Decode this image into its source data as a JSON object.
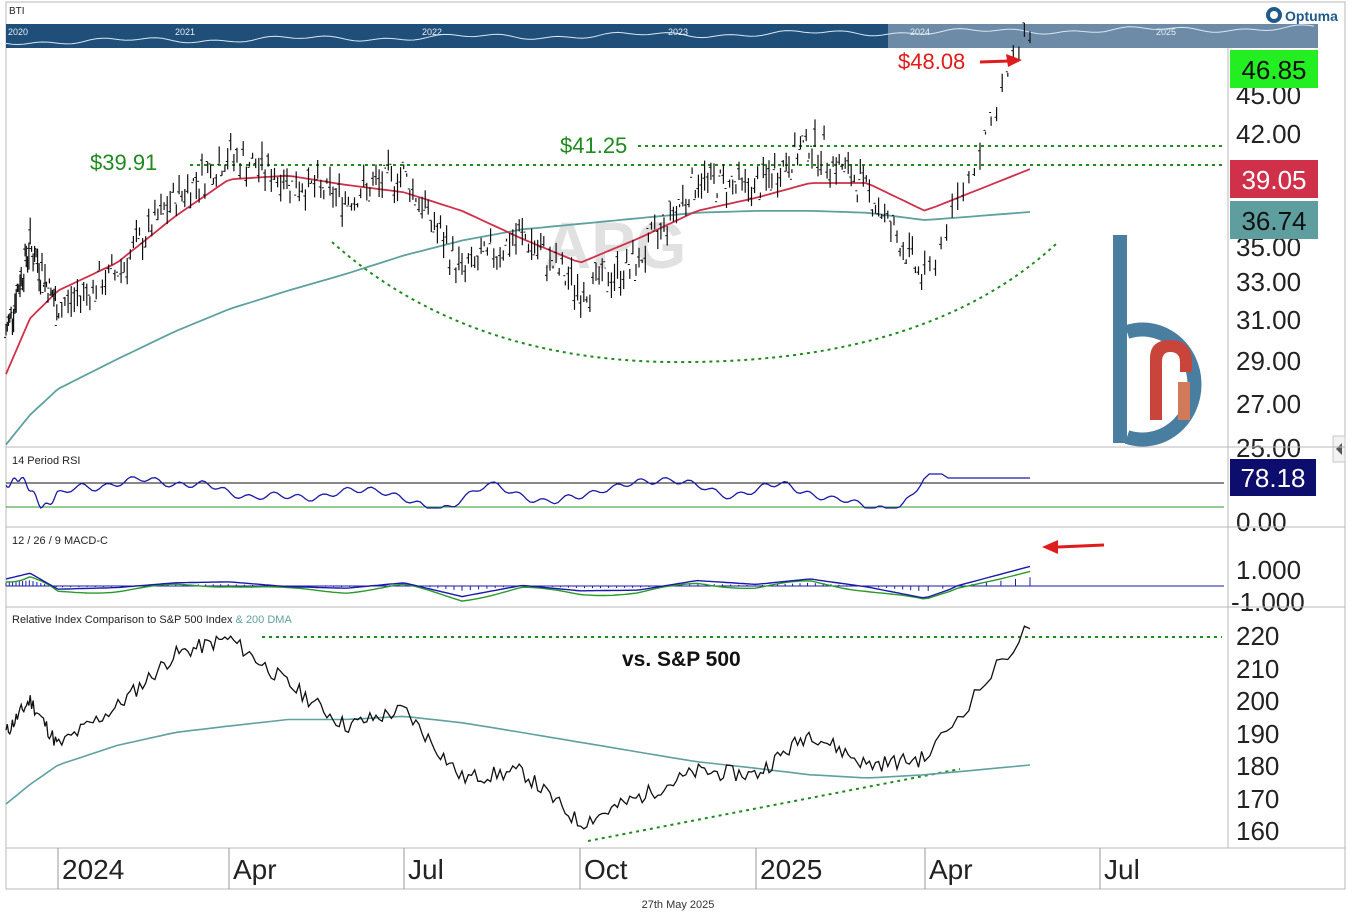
{
  "ticker": "BTI",
  "brand": "Optuma",
  "footer_date": "27th May 2025",
  "colors": {
    "price": "#111111",
    "ma_fast": "#d0304a",
    "ma_slow": "#5fa0a0",
    "dotted": "#1f8a1f",
    "annotation_red": "#e01b1b",
    "last_price_bg": "#22ee22",
    "ma_fast_bg": "#d0304a",
    "ma_slow_bg": "#5f9e9e",
    "rsi_bg": "#0d0d6e",
    "rsi_line": "#1a1aa8",
    "macd_line": "#1a1aa8",
    "signal_line": "#2a9a2a",
    "rel_line": "#111111",
    "rel_ma": "#5fa0a0",
    "logo": "#4a7ea0",
    "logo_accent": "#c9443a",
    "navigator_bg": "#1f4e79"
  },
  "navigator": {
    "years": [
      "2020",
      "2021",
      "2022",
      "2023",
      "2024",
      "2025"
    ]
  },
  "main": {
    "watermark": "APG",
    "price_axis": [
      "45.00",
      "42.00",
      "35.00",
      "33.00",
      "31.00",
      "29.00",
      "27.00",
      "25.00"
    ],
    "axis_boxes": {
      "last_price": "46.85",
      "ma_fast": "39.05",
      "ma_slow": "36.74"
    },
    "annotations": {
      "high_label": "$48.08",
      "resistance_1": "$39.91",
      "resistance_2": "$41.25"
    }
  },
  "rsi": {
    "title": "14 Period RSI",
    "value": "78.18",
    "axis_label": "0.00"
  },
  "macd": {
    "title": "12 / 26 / 9 MACD-C",
    "axis_labels": [
      "1.000",
      "-1.000"
    ]
  },
  "relative": {
    "title": "Relative Index Comparison to S&P 500 Index",
    "ma_label": "& 200 DMA",
    "annotation": "vs. S&P 500",
    "axis_labels": [
      "220",
      "210",
      "200",
      "190",
      "180",
      "170",
      "160"
    ]
  },
  "x_axis": [
    "2024",
    "Apr",
    "Jul",
    "Oct",
    "2025",
    "Apr",
    "Jul"
  ],
  "chart_data": {
    "type": "line",
    "title": "BTI",
    "x": [
      "2023-11",
      "2023-12",
      "2024-01",
      "2024-02",
      "2024-03",
      "2024-04",
      "2024-05",
      "2024-06",
      "2024-07",
      "2024-08",
      "2024-09",
      "2024-10",
      "2024-11",
      "2024-12",
      "2025-01",
      "2025-02",
      "2025-03",
      "2025-04",
      "2025-05"
    ],
    "series": [
      {
        "values": [
          30.2,
          35.0,
          31.5,
          33.5,
          37.5,
          39.8,
          38.5,
          37.5,
          38.8,
          33.5,
          35.5,
          32.5,
          34.0,
          38.5,
          38.0,
          40.5,
          38.0,
          33.0,
          46.85
        ]
      },
      {
        "values": [
          28.0,
          31.0,
          32.5,
          34.0,
          36.5,
          38.5,
          38.7,
          38.2,
          37.8,
          36.8,
          35.3,
          34.0,
          35.3,
          36.8,
          37.5,
          38.3,
          38.3,
          36.8,
          39.05
        ]
      },
      {
        "values": [
          24.2,
          25.8,
          27.2,
          28.8,
          30.3,
          31.5,
          32.5,
          33.4,
          34.4,
          35.2,
          35.8,
          36.1,
          36.4,
          36.7,
          36.8,
          36.8,
          36.7,
          36.3,
          36.74
        ]
      }
    ],
    "relative_index": {
      "values": [
        190,
        200,
        186,
        198,
        214,
        219,
        205,
        192,
        197,
        176,
        178,
        162,
        170,
        178,
        177,
        190,
        180,
        182,
        223
      ],
      "dma200": [
        168,
        174,
        180,
        186,
        190,
        192,
        194,
        194,
        195,
        193,
        190,
        187,
        184,
        181,
        179,
        177,
        176,
        177,
        180
      ]
    },
    "rsi_last": 78.18,
    "price_levels": [
      39.91,
      41.25,
      48.08
    ]
  }
}
